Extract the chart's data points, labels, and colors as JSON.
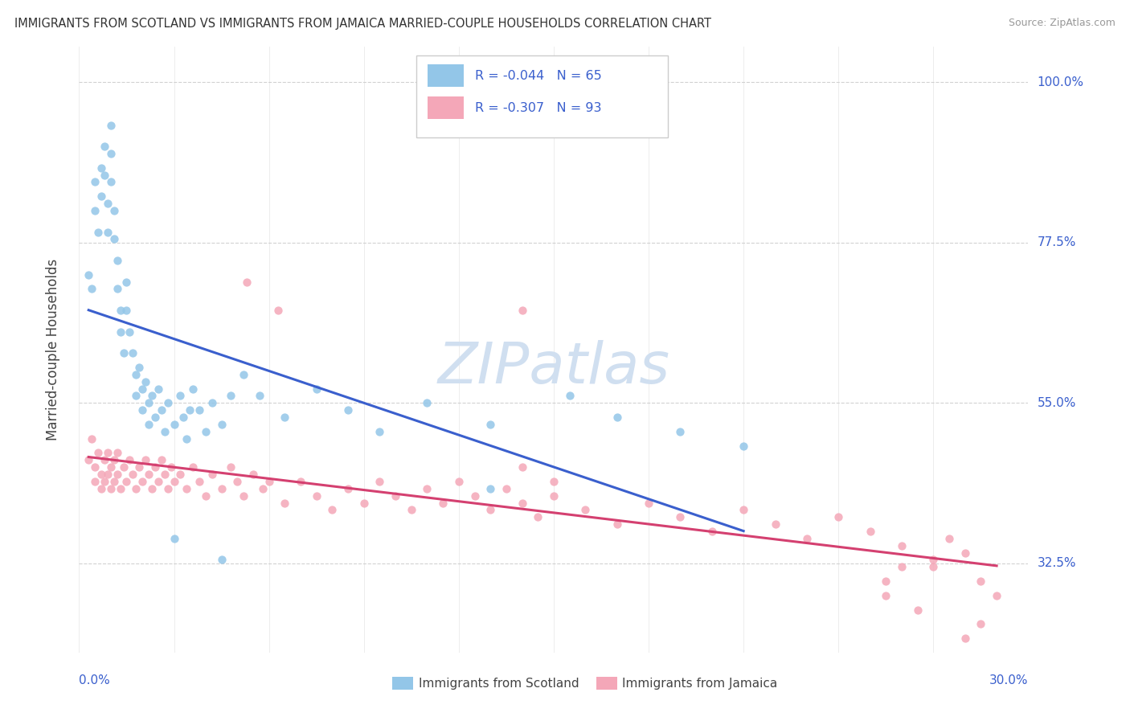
{
  "title": "IMMIGRANTS FROM SCOTLAND VS IMMIGRANTS FROM JAMAICA MARRIED-COUPLE HOUSEHOLDS CORRELATION CHART",
  "source": "Source: ZipAtlas.com",
  "ylabel": "Married-couple Households",
  "r_scotland": -0.044,
  "n_scotland": 65,
  "r_jamaica": -0.307,
  "n_jamaica": 93,
  "scotland_color": "#93c6e8",
  "jamaica_color": "#f4a7b8",
  "scotland_line_color": "#3a5fcd",
  "jamaica_line_color": "#d44070",
  "watermark_color": "#d0dff0",
  "xlim": [
    0.0,
    0.3
  ],
  "ylim": [
    0.2,
    1.05
  ],
  "right_labels": {
    "100.0%": 1.0,
    "77.5%": 0.775,
    "55.0%": 0.55,
    "32.5%": 0.325
  },
  "scotland_points": [
    [
      0.003,
      0.73
    ],
    [
      0.004,
      0.71
    ],
    [
      0.005,
      0.86
    ],
    [
      0.005,
      0.82
    ],
    [
      0.006,
      0.79
    ],
    [
      0.007,
      0.88
    ],
    [
      0.007,
      0.84
    ],
    [
      0.008,
      0.91
    ],
    [
      0.008,
      0.87
    ],
    [
      0.009,
      0.83
    ],
    [
      0.009,
      0.79
    ],
    [
      0.01,
      0.94
    ],
    [
      0.01,
      0.9
    ],
    [
      0.01,
      0.86
    ],
    [
      0.011,
      0.82
    ],
    [
      0.011,
      0.78
    ],
    [
      0.012,
      0.75
    ],
    [
      0.012,
      0.71
    ],
    [
      0.013,
      0.68
    ],
    [
      0.013,
      0.65
    ],
    [
      0.014,
      0.62
    ],
    [
      0.015,
      0.72
    ],
    [
      0.015,
      0.68
    ],
    [
      0.016,
      0.65
    ],
    [
      0.017,
      0.62
    ],
    [
      0.018,
      0.59
    ],
    [
      0.018,
      0.56
    ],
    [
      0.019,
      0.6
    ],
    [
      0.02,
      0.57
    ],
    [
      0.02,
      0.54
    ],
    [
      0.021,
      0.58
    ],
    [
      0.022,
      0.55
    ],
    [
      0.022,
      0.52
    ],
    [
      0.023,
      0.56
    ],
    [
      0.024,
      0.53
    ],
    [
      0.025,
      0.57
    ],
    [
      0.026,
      0.54
    ],
    [
      0.027,
      0.51
    ],
    [
      0.028,
      0.55
    ],
    [
      0.03,
      0.52
    ],
    [
      0.032,
      0.56
    ],
    [
      0.033,
      0.53
    ],
    [
      0.034,
      0.5
    ],
    [
      0.035,
      0.54
    ],
    [
      0.036,
      0.57
    ],
    [
      0.038,
      0.54
    ],
    [
      0.04,
      0.51
    ],
    [
      0.042,
      0.55
    ],
    [
      0.045,
      0.52
    ],
    [
      0.048,
      0.56
    ],
    [
      0.052,
      0.59
    ],
    [
      0.057,
      0.56
    ],
    [
      0.065,
      0.53
    ],
    [
      0.075,
      0.57
    ],
    [
      0.085,
      0.54
    ],
    [
      0.095,
      0.51
    ],
    [
      0.11,
      0.55
    ],
    [
      0.13,
      0.52
    ],
    [
      0.155,
      0.56
    ],
    [
      0.03,
      0.36
    ],
    [
      0.045,
      0.33
    ],
    [
      0.13,
      0.43
    ],
    [
      0.17,
      0.53
    ],
    [
      0.19,
      0.51
    ],
    [
      0.21,
      0.49
    ]
  ],
  "jamaica_points": [
    [
      0.003,
      0.47
    ],
    [
      0.004,
      0.5
    ],
    [
      0.005,
      0.46
    ],
    [
      0.005,
      0.44
    ],
    [
      0.006,
      0.48
    ],
    [
      0.007,
      0.45
    ],
    [
      0.007,
      0.43
    ],
    [
      0.008,
      0.47
    ],
    [
      0.008,
      0.44
    ],
    [
      0.009,
      0.48
    ],
    [
      0.009,
      0.45
    ],
    [
      0.01,
      0.46
    ],
    [
      0.01,
      0.43
    ],
    [
      0.011,
      0.47
    ],
    [
      0.011,
      0.44
    ],
    [
      0.012,
      0.48
    ],
    [
      0.012,
      0.45
    ],
    [
      0.013,
      0.43
    ],
    [
      0.014,
      0.46
    ],
    [
      0.015,
      0.44
    ],
    [
      0.016,
      0.47
    ],
    [
      0.017,
      0.45
    ],
    [
      0.018,
      0.43
    ],
    [
      0.019,
      0.46
    ],
    [
      0.02,
      0.44
    ],
    [
      0.021,
      0.47
    ],
    [
      0.022,
      0.45
    ],
    [
      0.023,
      0.43
    ],
    [
      0.024,
      0.46
    ],
    [
      0.025,
      0.44
    ],
    [
      0.026,
      0.47
    ],
    [
      0.027,
      0.45
    ],
    [
      0.028,
      0.43
    ],
    [
      0.029,
      0.46
    ],
    [
      0.03,
      0.44
    ],
    [
      0.032,
      0.45
    ],
    [
      0.034,
      0.43
    ],
    [
      0.036,
      0.46
    ],
    [
      0.038,
      0.44
    ],
    [
      0.04,
      0.42
    ],
    [
      0.042,
      0.45
    ],
    [
      0.045,
      0.43
    ],
    [
      0.048,
      0.46
    ],
    [
      0.05,
      0.44
    ],
    [
      0.052,
      0.42
    ],
    [
      0.055,
      0.45
    ],
    [
      0.058,
      0.43
    ],
    [
      0.06,
      0.44
    ],
    [
      0.053,
      0.72
    ],
    [
      0.063,
      0.68
    ],
    [
      0.14,
      0.68
    ],
    [
      0.065,
      0.41
    ],
    [
      0.07,
      0.44
    ],
    [
      0.075,
      0.42
    ],
    [
      0.08,
      0.4
    ],
    [
      0.085,
      0.43
    ],
    [
      0.09,
      0.41
    ],
    [
      0.095,
      0.44
    ],
    [
      0.1,
      0.42
    ],
    [
      0.105,
      0.4
    ],
    [
      0.11,
      0.43
    ],
    [
      0.115,
      0.41
    ],
    [
      0.12,
      0.44
    ],
    [
      0.125,
      0.42
    ],
    [
      0.13,
      0.4
    ],
    [
      0.135,
      0.43
    ],
    [
      0.14,
      0.41
    ],
    [
      0.145,
      0.39
    ],
    [
      0.15,
      0.42
    ],
    [
      0.16,
      0.4
    ],
    [
      0.17,
      0.38
    ],
    [
      0.18,
      0.41
    ],
    [
      0.19,
      0.39
    ],
    [
      0.2,
      0.37
    ],
    [
      0.21,
      0.4
    ],
    [
      0.22,
      0.38
    ],
    [
      0.23,
      0.36
    ],
    [
      0.24,
      0.39
    ],
    [
      0.25,
      0.37
    ],
    [
      0.26,
      0.35
    ],
    [
      0.14,
      0.46
    ],
    [
      0.15,
      0.44
    ],
    [
      0.27,
      0.33
    ],
    [
      0.275,
      0.36
    ],
    [
      0.28,
      0.34
    ],
    [
      0.255,
      0.28
    ],
    [
      0.27,
      0.32
    ],
    [
      0.265,
      0.26
    ],
    [
      0.285,
      0.3
    ],
    [
      0.29,
      0.28
    ],
    [
      0.28,
      0.22
    ],
    [
      0.285,
      0.24
    ],
    [
      0.255,
      0.3
    ],
    [
      0.26,
      0.32
    ]
  ]
}
